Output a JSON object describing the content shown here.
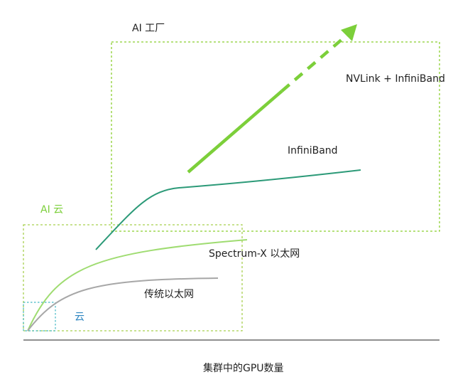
{
  "labels": {
    "ai_factory": "AI 工厂",
    "nvlink_infiniband": "NVLink + InfiniBand",
    "infiniband": "InfiniBand",
    "ai_cloud": "AI 云",
    "spectrum_x": "Spectrum-X 以太网",
    "traditional_ethernet": "传统以太网",
    "cloud": "云",
    "x_axis": "集群中的GPU数量"
  },
  "colors": {
    "ai_factory_box": "#8bcf2f",
    "ai_cloud_box": "#a8d04e",
    "cloud_box": "#42b7c4",
    "nvlink_arrow": "#7ccf3a",
    "infiniband_curve": "#2c9a78",
    "spectrum_curve": "#9fdc71",
    "traditional_curve": "#a7a7a7",
    "cloud_label": "#2e86c1",
    "ai_cloud_label": "#7ccf3a",
    "text": "#222222"
  }
}
